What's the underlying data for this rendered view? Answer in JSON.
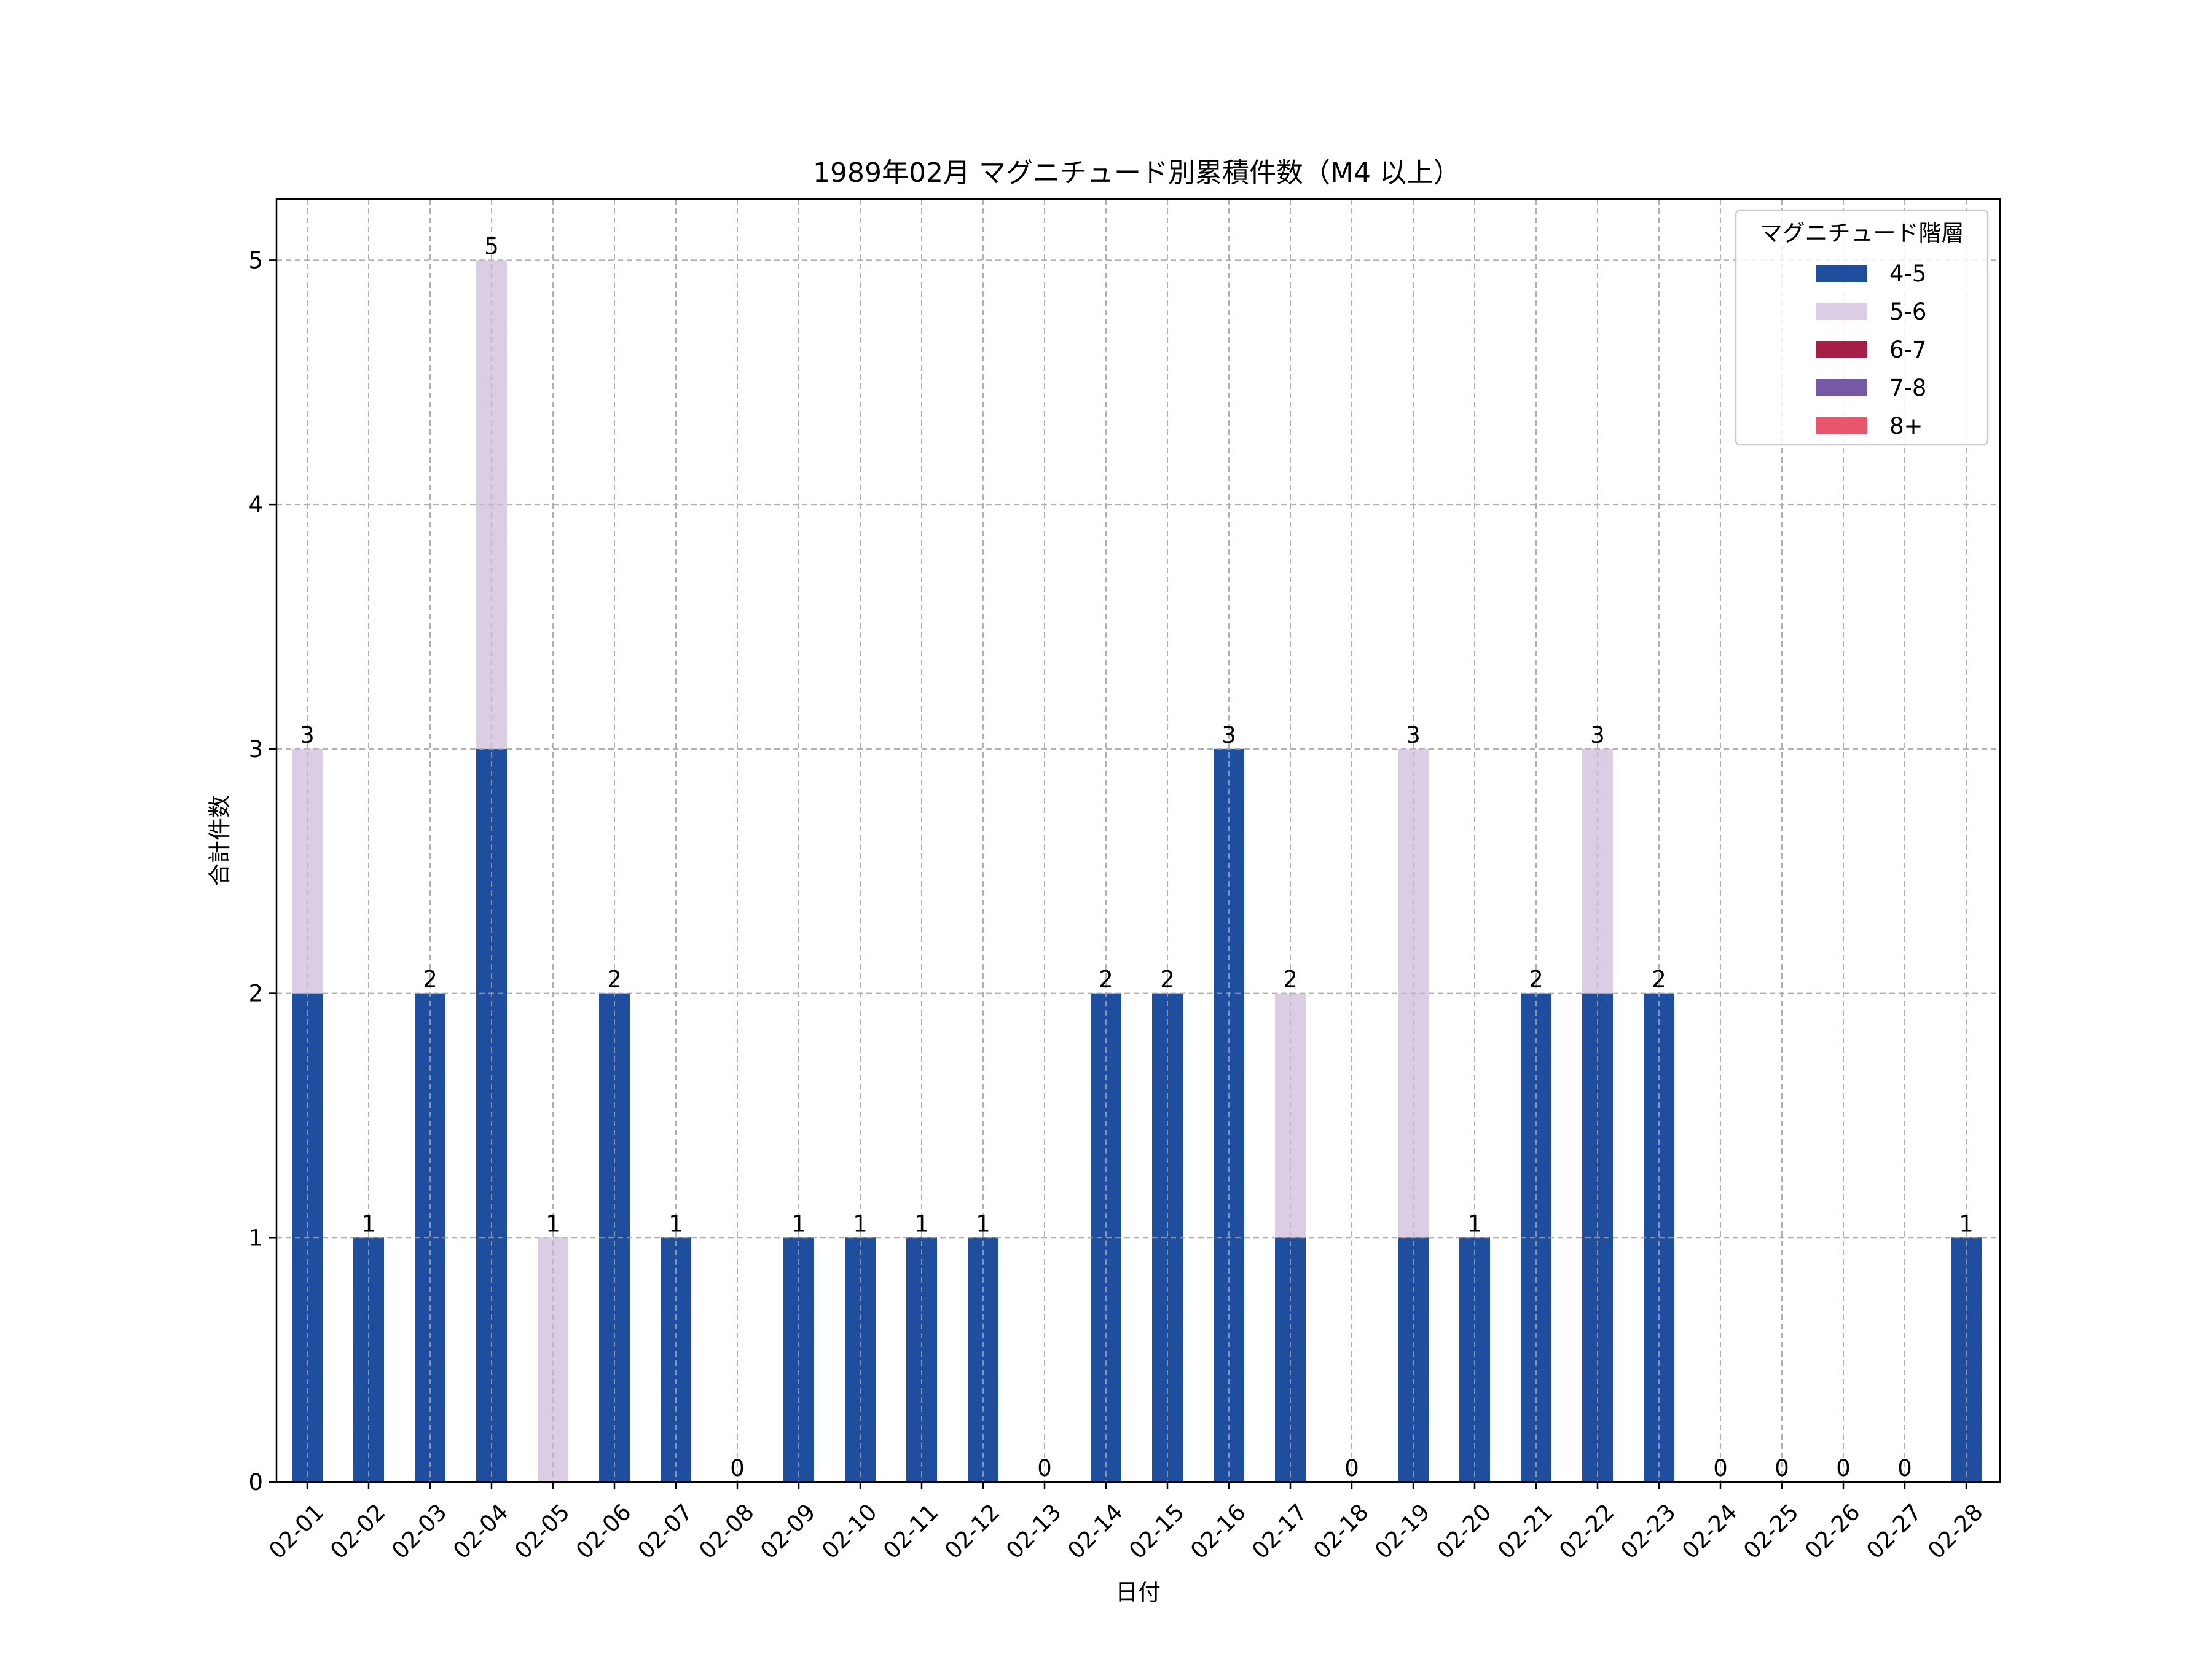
{
  "chart_data": {
    "type": "bar",
    "stacked": true,
    "title": "1989年02月 マグニチュード別累積件数（M4 以上）",
    "xlabel": "日付",
    "ylabel": "合計件数",
    "ylim": [
      0,
      5.25
    ],
    "yticks": [
      0,
      1,
      2,
      3,
      4,
      5
    ],
    "grid": true,
    "legend_position": "top-right",
    "legend_title": "マグニチュード階層",
    "categories": [
      "02-01",
      "02-02",
      "02-03",
      "02-04",
      "02-05",
      "02-06",
      "02-07",
      "02-08",
      "02-09",
      "02-10",
      "02-11",
      "02-12",
      "02-13",
      "02-14",
      "02-15",
      "02-16",
      "02-17",
      "02-18",
      "02-19",
      "02-20",
      "02-21",
      "02-22",
      "02-23",
      "02-24",
      "02-25",
      "02-26",
      "02-27",
      "02-28"
    ],
    "series": [
      {
        "name": "4-5",
        "color": "#1f4e9e",
        "values": [
          2,
          1,
          2,
          3,
          0,
          2,
          1,
          0,
          1,
          1,
          1,
          1,
          0,
          2,
          2,
          3,
          1,
          0,
          1,
          1,
          2,
          2,
          2,
          0,
          0,
          0,
          0,
          1
        ]
      },
      {
        "name": "5-6",
        "color": "#dacde4",
        "values": [
          1,
          0,
          0,
          2,
          1,
          0,
          0,
          0,
          0,
          0,
          0,
          0,
          0,
          0,
          0,
          0,
          1,
          0,
          2,
          0,
          0,
          1,
          0,
          0,
          0,
          0,
          0,
          0
        ]
      },
      {
        "name": "6-7",
        "color": "#a51e45",
        "values": [
          0,
          0,
          0,
          0,
          0,
          0,
          0,
          0,
          0,
          0,
          0,
          0,
          0,
          0,
          0,
          0,
          0,
          0,
          0,
          0,
          0,
          0,
          0,
          0,
          0,
          0,
          0,
          0
        ]
      },
      {
        "name": "7-8",
        "color": "#7558a6",
        "values": [
          0,
          0,
          0,
          0,
          0,
          0,
          0,
          0,
          0,
          0,
          0,
          0,
          0,
          0,
          0,
          0,
          0,
          0,
          0,
          0,
          0,
          0,
          0,
          0,
          0,
          0,
          0,
          0
        ]
      },
      {
        "name": "8+",
        "color": "#e8576b",
        "values": [
          0,
          0,
          0,
          0,
          0,
          0,
          0,
          0,
          0,
          0,
          0,
          0,
          0,
          0,
          0,
          0,
          0,
          0,
          0,
          0,
          0,
          0,
          0,
          0,
          0,
          0,
          0,
          0
        ]
      }
    ],
    "totals": [
      3,
      1,
      2,
      5,
      1,
      2,
      1,
      0,
      1,
      1,
      1,
      1,
      0,
      2,
      2,
      3,
      2,
      0,
      3,
      1,
      2,
      3,
      2,
      0,
      0,
      0,
      0,
      1
    ]
  }
}
